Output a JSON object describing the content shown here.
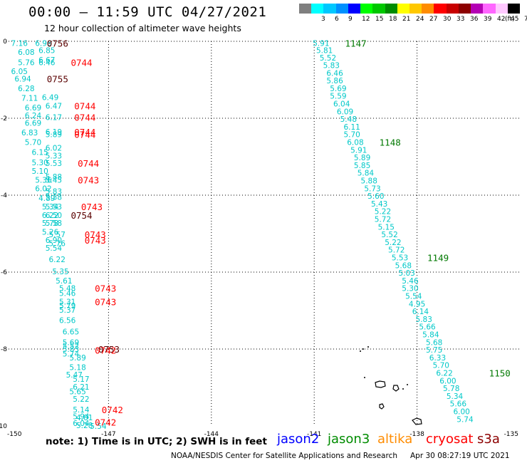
{
  "header": {
    "title": "00:00 – 11:59 UTC 04/27/2021",
    "subtitle": "12 hour collection of altimeter wave heights"
  },
  "color_scale": {
    "unit": "(ft)",
    "steps": [
      {
        "color": "#7f7f7f",
        "label": ""
      },
      {
        "color": "#00ffff",
        "label": "3"
      },
      {
        "color": "#00c8ff",
        "label": "6"
      },
      {
        "color": "#0090ff",
        "label": "9"
      },
      {
        "color": "#0000ff",
        "label": "12"
      },
      {
        "color": "#00ff00",
        "label": "15"
      },
      {
        "color": "#00c800",
        "label": "18"
      },
      {
        "color": "#008c00",
        "label": "21"
      },
      {
        "color": "#ffff00",
        "label": "24"
      },
      {
        "color": "#ffc800",
        "label": "27"
      },
      {
        "color": "#ff8c00",
        "label": "30"
      },
      {
        "color": "#ff0000",
        "label": "33"
      },
      {
        "color": "#c80000",
        "label": "36"
      },
      {
        "color": "#8c0000",
        "label": "39"
      },
      {
        "color": "#b400b4",
        "label": "42"
      },
      {
        "color": "#ff66ff",
        "label": "45"
      },
      {
        "color": "#ffc8ff",
        "label": "70"
      },
      {
        "color": "#000000",
        "label": ""
      }
    ]
  },
  "map": {
    "lon_range": [
      -150,
      -135
    ],
    "lat_range": [
      -10,
      0
    ],
    "x_ticks": [
      "-150",
      "-147",
      "-144",
      "-141",
      "-138",
      "-135"
    ],
    "y_ticks": [
      "0",
      "-2",
      "-4",
      "-6",
      "-8",
      "-10"
    ],
    "grid": "dotted",
    "islands": "French Polynesia (Tuamotu) outlines"
  },
  "chart_data": {
    "type": "scatter",
    "xlabel": "",
    "ylabel": "",
    "xlim": [
      -150,
      -135
    ],
    "ylim": [
      -10,
      0
    ],
    "swh_points": [
      {
        "lon": -149.6,
        "lat": -0.05,
        "v": "7.16"
      },
      {
        "lon": -148.9,
        "lat": -0.05,
        "v": "6.96"
      },
      {
        "lon": -149.4,
        "lat": -0.28,
        "v": "6.08"
      },
      {
        "lon": -148.8,
        "lat": -0.23,
        "v": "6.85"
      },
      {
        "lon": -148.8,
        "lat": -0.48,
        "v": "6.67"
      },
      {
        "lon": -148.8,
        "lat": -0.55,
        "v": "6.46"
      },
      {
        "lon": -149.4,
        "lat": -0.55,
        "v": "5.76"
      },
      {
        "lon": -149.6,
        "lat": -0.78,
        "v": "6.05"
      },
      {
        "lon": -149.5,
        "lat": -0.97,
        "v": "6.94"
      },
      {
        "lon": -149.4,
        "lat": -1.22,
        "v": "6.28"
      },
      {
        "lon": -148.7,
        "lat": -1.45,
        "v": "6.49"
      },
      {
        "lon": -149.3,
        "lat": -1.47,
        "v": "7.11"
      },
      {
        "lon": -148.6,
        "lat": -1.68,
        "v": "6.47"
      },
      {
        "lon": -149.2,
        "lat": -1.72,
        "v": "6.69"
      },
      {
        "lon": -149.2,
        "lat": -1.93,
        "v": "6.24"
      },
      {
        "lon": -148.6,
        "lat": -1.97,
        "v": "6.17"
      },
      {
        "lon": -149.2,
        "lat": -2.12,
        "v": "6.69"
      },
      {
        "lon": -148.6,
        "lat": -2.35,
        "v": "6.19"
      },
      {
        "lon": -149.3,
        "lat": -2.37,
        "v": "6.83"
      },
      {
        "lon": -148.6,
        "lat": -2.42,
        "v": "5.89"
      },
      {
        "lon": -149.2,
        "lat": -2.62,
        "v": "5.70"
      },
      {
        "lon": -148.6,
        "lat": -2.77,
        "v": "6.02"
      },
      {
        "lon": -149.0,
        "lat": -2.88,
        "v": "6.15"
      },
      {
        "lon": -148.6,
        "lat": -2.97,
        "v": "5.33"
      },
      {
        "lon": -149.0,
        "lat": -3.15,
        "v": "5.30"
      },
      {
        "lon": -148.6,
        "lat": -3.17,
        "v": "5.53"
      },
      {
        "lon": -149.0,
        "lat": -3.37,
        "v": "5.10"
      },
      {
        "lon": -148.6,
        "lat": -3.52,
        "v": "5.88"
      },
      {
        "lon": -148.9,
        "lat": -3.6,
        "v": "5.36"
      },
      {
        "lon": -148.6,
        "lat": -3.6,
        "v": "5.45"
      },
      {
        "lon": -148.9,
        "lat": -3.82,
        "v": "6.02"
      },
      {
        "lon": -148.6,
        "lat": -3.9,
        "v": "5.83"
      },
      {
        "lon": -148.8,
        "lat": -4.07,
        "v": "4.89"
      },
      {
        "lon": -148.6,
        "lat": -4.05,
        "v": "5.38"
      },
      {
        "lon": -148.7,
        "lat": -4.3,
        "v": "5.34"
      },
      {
        "lon": -148.6,
        "lat": -4.3,
        "v": "5.53"
      },
      {
        "lon": -148.7,
        "lat": -4.52,
        "v": "6.22"
      },
      {
        "lon": -148.6,
        "lat": -4.52,
        "v": "6.50"
      },
      {
        "lon": -148.7,
        "lat": -4.72,
        "v": "5.78"
      },
      {
        "lon": -148.6,
        "lat": -4.72,
        "v": "5.58"
      },
      {
        "lon": -148.7,
        "lat": -4.95,
        "v": "5.26"
      },
      {
        "lon": -148.5,
        "lat": -5.02,
        "v": "5.57"
      },
      {
        "lon": -148.6,
        "lat": -5.17,
        "v": "6.90"
      },
      {
        "lon": -148.5,
        "lat": -5.25,
        "v": "5.76"
      },
      {
        "lon": -148.6,
        "lat": -5.37,
        "v": "5.54"
      },
      {
        "lon": -148.5,
        "lat": -5.67,
        "v": "6.22"
      },
      {
        "lon": -148.4,
        "lat": -5.98,
        "v": "5.35"
      },
      {
        "lon": -148.3,
        "lat": -6.22,
        "v": "5.61"
      },
      {
        "lon": -148.2,
        "lat": -6.42,
        "v": "5.48"
      },
      {
        "lon": -148.2,
        "lat": -6.55,
        "v": "5.46"
      },
      {
        "lon": -148.2,
        "lat": -6.77,
        "v": "5.31"
      },
      {
        "lon": -148.2,
        "lat": -6.87,
        "v": "5.79"
      },
      {
        "lon": -148.2,
        "lat": -6.98,
        "v": "5.37"
      },
      {
        "lon": -148.2,
        "lat": -7.25,
        "v": "6.56"
      },
      {
        "lon": -148.1,
        "lat": -7.55,
        "v": "6.65"
      },
      {
        "lon": -148.1,
        "lat": -7.82,
        "v": "5.69"
      },
      {
        "lon": -148.1,
        "lat": -7.92,
        "v": "5.52"
      },
      {
        "lon": -148.1,
        "lat": -8.0,
        "v": "5.83"
      },
      {
        "lon": -148.1,
        "lat": -8.12,
        "v": "5.74"
      },
      {
        "lon": -147.9,
        "lat": -8.22,
        "v": "5.89"
      },
      {
        "lon": -147.9,
        "lat": -8.47,
        "v": "5.18"
      },
      {
        "lon": -148.0,
        "lat": -8.67,
        "v": "5.47"
      },
      {
        "lon": -147.8,
        "lat": -8.78,
        "v": "5.17"
      },
      {
        "lon": -147.8,
        "lat": -8.98,
        "v": "6.21"
      },
      {
        "lon": -147.9,
        "lat": -9.1,
        "v": "5.65"
      },
      {
        "lon": -147.8,
        "lat": -9.3,
        "v": "5.22"
      },
      {
        "lon": -147.8,
        "lat": -9.57,
        "v": "5.14"
      },
      {
        "lon": -147.8,
        "lat": -9.75,
        "v": "5.94"
      },
      {
        "lon": -147.7,
        "lat": -9.78,
        "v": "4.01"
      },
      {
        "lon": -147.8,
        "lat": -9.93,
        "v": "6.04"
      },
      {
        "lon": -147.7,
        "lat": -9.98,
        "v": "5.28"
      },
      {
        "lon": -147.3,
        "lat": -10.0,
        "v": "5.54"
      },
      {
        "lon": -140.8,
        "lat": -0.05,
        "v": "5.91"
      },
      {
        "lon": -140.7,
        "lat": -0.23,
        "v": "5.81"
      },
      {
        "lon": -140.6,
        "lat": -0.43,
        "v": "5.52"
      },
      {
        "lon": -140.5,
        "lat": -0.62,
        "v": "5.83"
      },
      {
        "lon": -140.4,
        "lat": -0.82,
        "v": "6.46"
      },
      {
        "lon": -140.4,
        "lat": -1.02,
        "v": "5.86"
      },
      {
        "lon": -140.3,
        "lat": -1.22,
        "v": "5.69"
      },
      {
        "lon": -140.3,
        "lat": -1.42,
        "v": "5.59"
      },
      {
        "lon": -140.2,
        "lat": -1.62,
        "v": "6.04"
      },
      {
        "lon": -140.1,
        "lat": -1.82,
        "v": "6.09"
      },
      {
        "lon": -140.0,
        "lat": -2.02,
        "v": "5.48"
      },
      {
        "lon": -139.9,
        "lat": -2.22,
        "v": "6.11"
      },
      {
        "lon": -139.9,
        "lat": -2.42,
        "v": "5.70"
      },
      {
        "lon": -139.8,
        "lat": -2.62,
        "v": "6.08"
      },
      {
        "lon": -139.7,
        "lat": -2.82,
        "v": "5.91"
      },
      {
        "lon": -139.6,
        "lat": -3.02,
        "v": "5.89"
      },
      {
        "lon": -139.6,
        "lat": -3.22,
        "v": "5.85"
      },
      {
        "lon": -139.5,
        "lat": -3.42,
        "v": "5.84"
      },
      {
        "lon": -139.4,
        "lat": -3.62,
        "v": "5.88"
      },
      {
        "lon": -139.3,
        "lat": -3.82,
        "v": "5.73"
      },
      {
        "lon": -139.2,
        "lat": -4.02,
        "v": "5.60"
      },
      {
        "lon": -139.1,
        "lat": -4.22,
        "v": "5.43"
      },
      {
        "lon": -139.0,
        "lat": -4.42,
        "v": "5.22"
      },
      {
        "lon": -139.0,
        "lat": -4.62,
        "v": "5.72"
      },
      {
        "lon": -138.9,
        "lat": -4.82,
        "v": "5.15"
      },
      {
        "lon": -138.8,
        "lat": -5.02,
        "v": "5.52"
      },
      {
        "lon": -138.7,
        "lat": -5.22,
        "v": "5.22"
      },
      {
        "lon": -138.6,
        "lat": -5.42,
        "v": "5.72"
      },
      {
        "lon": -138.5,
        "lat": -5.62,
        "v": "5.53"
      },
      {
        "lon": -138.4,
        "lat": -5.82,
        "v": "5.68"
      },
      {
        "lon": -138.3,
        "lat": -6.02,
        "v": "5.03"
      },
      {
        "lon": -138.2,
        "lat": -6.22,
        "v": "5.46"
      },
      {
        "lon": -138.2,
        "lat": -6.42,
        "v": "5.30"
      },
      {
        "lon": -138.1,
        "lat": -6.62,
        "v": "5.54"
      },
      {
        "lon": -138.0,
        "lat": -6.82,
        "v": "4.95"
      },
      {
        "lon": -137.9,
        "lat": -7.02,
        "v": "6.14"
      },
      {
        "lon": -137.8,
        "lat": -7.22,
        "v": "5.83"
      },
      {
        "lon": -137.7,
        "lat": -7.42,
        "v": "5.66"
      },
      {
        "lon": -137.6,
        "lat": -7.62,
        "v": "5.84"
      },
      {
        "lon": -137.5,
        "lat": -7.82,
        "v": "5.68"
      },
      {
        "lon": -137.5,
        "lat": -8.02,
        "v": "5.75"
      },
      {
        "lon": -137.4,
        "lat": -8.22,
        "v": "6.33"
      },
      {
        "lon": -137.3,
        "lat": -8.42,
        "v": "5.70"
      },
      {
        "lon": -137.2,
        "lat": -8.62,
        "v": "6.22"
      },
      {
        "lon": -137.1,
        "lat": -8.82,
        "v": "6.00"
      },
      {
        "lon": -137.0,
        "lat": -9.02,
        "v": "5.78"
      },
      {
        "lon": -136.9,
        "lat": -9.22,
        "v": "5.34"
      },
      {
        "lon": -136.8,
        "lat": -9.42,
        "v": "5.66"
      },
      {
        "lon": -136.7,
        "lat": -9.62,
        "v": "6.00"
      },
      {
        "lon": -136.6,
        "lat": -9.82,
        "v": "5.74"
      }
    ],
    "time_labels": [
      {
        "lon": -148.8,
        "lat": -0.05,
        "t": "0756",
        "color": "#5a0000"
      },
      {
        "lon": -148.1,
        "lat": -0.55,
        "t": "0744",
        "color": "#ff0000"
      },
      {
        "lon": -148.8,
        "lat": -0.97,
        "t": "0755",
        "color": "#5a0000"
      },
      {
        "lon": -148.0,
        "lat": -1.68,
        "t": "0744",
        "color": "#ff0000"
      },
      {
        "lon": -148.0,
        "lat": -1.97,
        "t": "0744",
        "color": "#ff0000"
      },
      {
        "lon": -148.0,
        "lat": -2.35,
        "t": "0744",
        "color": "#ff0000"
      },
      {
        "lon": -148.0,
        "lat": -2.42,
        "t": "0744",
        "color": "#ff0000"
      },
      {
        "lon": -147.9,
        "lat": -3.17,
        "t": "0744",
        "color": "#ff0000"
      },
      {
        "lon": -147.9,
        "lat": -3.6,
        "t": "0743",
        "color": "#ff0000"
      },
      {
        "lon": -147.8,
        "lat": -4.3,
        "t": "0743",
        "color": "#ff0000"
      },
      {
        "lon": -148.1,
        "lat": -4.52,
        "t": "0754",
        "color": "#5a0000"
      },
      {
        "lon": -147.7,
        "lat": -5.02,
        "t": "0743",
        "color": "#ff0000"
      },
      {
        "lon": -147.7,
        "lat": -5.17,
        "t": "0743",
        "color": "#ff0000"
      },
      {
        "lon": -147.4,
        "lat": -6.42,
        "t": "0743",
        "color": "#ff0000"
      },
      {
        "lon": -147.4,
        "lat": -6.77,
        "t": "0743",
        "color": "#ff0000"
      },
      {
        "lon": -147.3,
        "lat": -8.0,
        "t": "0753",
        "color": "#5a0000"
      },
      {
        "lon": -147.4,
        "lat": -8.03,
        "t": "0742",
        "color": "#ff0000"
      },
      {
        "lon": -147.2,
        "lat": -9.57,
        "t": "0742",
        "color": "#ff0000"
      },
      {
        "lon": -147.4,
        "lat": -9.9,
        "t": "0742",
        "color": "#ff0000"
      },
      {
        "lon": -140.1,
        "lat": -0.05,
        "t": "1147",
        "color": "#007800"
      },
      {
        "lon": -139.1,
        "lat": -2.62,
        "t": "1148",
        "color": "#007800"
      },
      {
        "lon": -137.7,
        "lat": -5.62,
        "t": "1149",
        "color": "#007800"
      },
      {
        "lon": -135.9,
        "lat": -8.62,
        "t": "1150",
        "color": "#007800"
      }
    ]
  },
  "footer": {
    "note": "note: 1) Time is in UTC; 2) SWH is in feet",
    "legend": [
      {
        "label": "jason2",
        "color": "#0000ff"
      },
      {
        "label": "jason3",
        "color": "#008c00"
      },
      {
        "label": "altika",
        "color": "#ff8c00"
      },
      {
        "label": "cryosat",
        "color": "#ff0000"
      },
      {
        "label": "s3a",
        "color": "#8c0000"
      }
    ],
    "credit": "NOAA/NESDIS Center for Satellite Applications and Research",
    "timestamp": "Apr 30 08:27:19 UTC 2021"
  }
}
